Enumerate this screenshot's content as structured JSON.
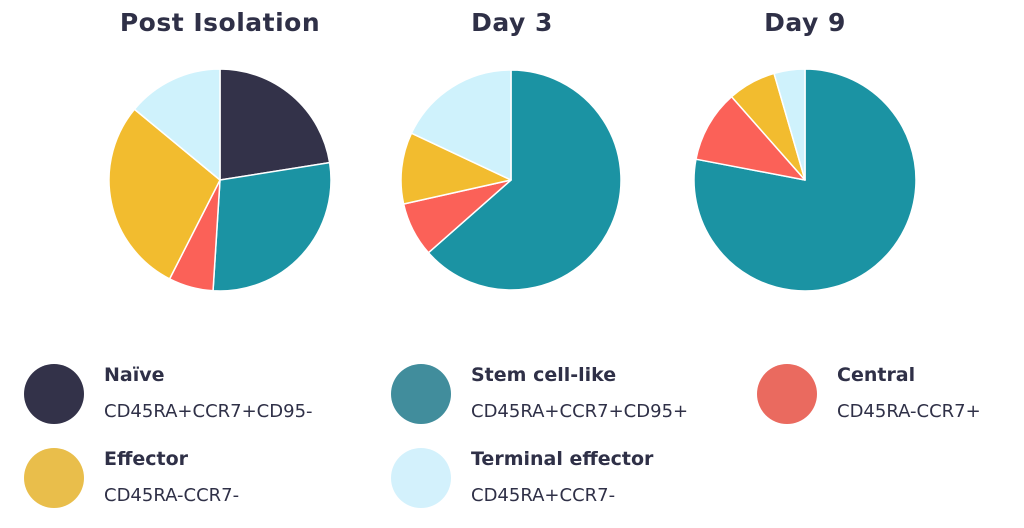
{
  "chart_data": [
    {
      "type": "pie",
      "title": "Post Isolation",
      "slices": [
        {
          "label": "Naïve",
          "value": 22.5
        },
        {
          "label": "Stem cell-like",
          "value": 28.5
        },
        {
          "label": "Central",
          "value": 6.5
        },
        {
          "label": "Effector",
          "value": 28.5
        },
        {
          "label": "Terminal effector",
          "value": 14
        }
      ]
    },
    {
      "type": "pie",
      "title": "Day 3",
      "slices": [
        {
          "label": "Naïve",
          "value": 0
        },
        {
          "label": "Stem cell-like",
          "value": 63.5
        },
        {
          "label": "Central",
          "value": 8
        },
        {
          "label": "Effector",
          "value": 10.5
        },
        {
          "label": "Terminal effector",
          "value": 18
        }
      ]
    },
    {
      "type": "pie",
      "title": "Day 9",
      "slices": [
        {
          "label": "Naïve",
          "value": 0
        },
        {
          "label": "Stem cell-like",
          "value": 78
        },
        {
          "label": "Central",
          "value": 10.5
        },
        {
          "label": "Effector",
          "value": 7
        },
        {
          "label": "Terminal effector",
          "value": 4.5
        }
      ]
    }
  ],
  "legend": [
    {
      "name": "Naïve",
      "desc": "CD45RA+CCR7+CD95-",
      "color": "#333249"
    },
    {
      "name": "Stem cell-like",
      "desc": "CD45RA+CCR7+CD95+",
      "color": "#418d9c"
    },
    {
      "name": "Central",
      "desc": "CD45RA-CCR7+",
      "color": "#ea6a5f"
    },
    {
      "name": "Effector",
      "desc": "CD45RA-CCR7-",
      "color": "#e9be4b"
    },
    {
      "name": "Terminal effector",
      "desc": "CD45RA+CCR7-",
      "color": "#d3f1fc"
    }
  ],
  "colors": {
    "Naïve": "#333249",
    "Stem cell-like": "#1b93a3",
    "Central": "#fb6158",
    "Effector": "#f2bc2f",
    "Terminal effector": "#cff2fc"
  }
}
